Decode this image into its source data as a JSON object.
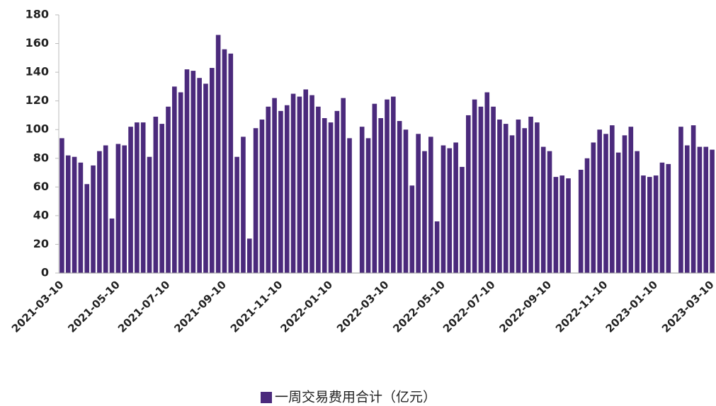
{
  "chart_data": {
    "type": "bar",
    "categories": [
      "2021-03-10",
      null,
      null,
      null,
      null,
      null,
      null,
      null,
      null,
      "2021-05-10",
      null,
      null,
      null,
      null,
      null,
      null,
      null,
      "2021-07-10",
      null,
      null,
      null,
      null,
      null,
      null,
      null,
      null,
      "2021-09-10",
      null,
      null,
      null,
      null,
      null,
      null,
      null,
      null,
      "2021-11-10",
      null,
      null,
      null,
      null,
      null,
      null,
      null,
      "2022-01-10",
      null,
      null,
      null,
      null,
      null,
      null,
      null,
      null,
      "2022-03-10",
      null,
      null,
      null,
      null,
      null,
      null,
      null,
      null,
      "2022-05-10",
      null,
      null,
      null,
      null,
      null,
      null,
      null,
      "2022-07-10",
      null,
      null,
      null,
      null,
      null,
      null,
      null,
      null,
      "2022-09-10",
      null,
      null,
      null,
      null,
      null,
      null,
      null,
      null,
      "2022-11-10",
      null,
      null,
      null,
      null,
      null,
      null,
      null,
      "2023-01-10",
      null,
      null,
      null,
      null,
      null,
      null,
      null,
      null,
      "2023-03-10"
    ],
    "series": [
      {
        "name": "一周交易费用合计（亿元）",
        "color": "#4b2a7c",
        "values": [
          94,
          82,
          81,
          77,
          62,
          75,
          85,
          89,
          38,
          90,
          89,
          102,
          105,
          105,
          81,
          109,
          104,
          116,
          130,
          126,
          142,
          141,
          136,
          132,
          143,
          166,
          156,
          153,
          81,
          95,
          24,
          101,
          107,
          116,
          122,
          113,
          117,
          125,
          123,
          128,
          124,
          116,
          108,
          105,
          113,
          122,
          94,
          null,
          102,
          94,
          118,
          108,
          121,
          123,
          106,
          100,
          61,
          97,
          85,
          95,
          36,
          89,
          87,
          91,
          74,
          110,
          121,
          116,
          126,
          116,
          107,
          104,
          96,
          107,
          101,
          109,
          105,
          88,
          85,
          67,
          68,
          66,
          null,
          72,
          80,
          91,
          100,
          97,
          103,
          84,
          96,
          102,
          85,
          68,
          67,
          68,
          77,
          76,
          null,
          102,
          89,
          103,
          88,
          88,
          86
        ]
      }
    ],
    "ylim": [
      0,
      180
    ],
    "yticks": [
      0,
      20,
      40,
      60,
      80,
      100,
      120,
      140,
      160,
      180
    ],
    "legend": "bottom"
  }
}
